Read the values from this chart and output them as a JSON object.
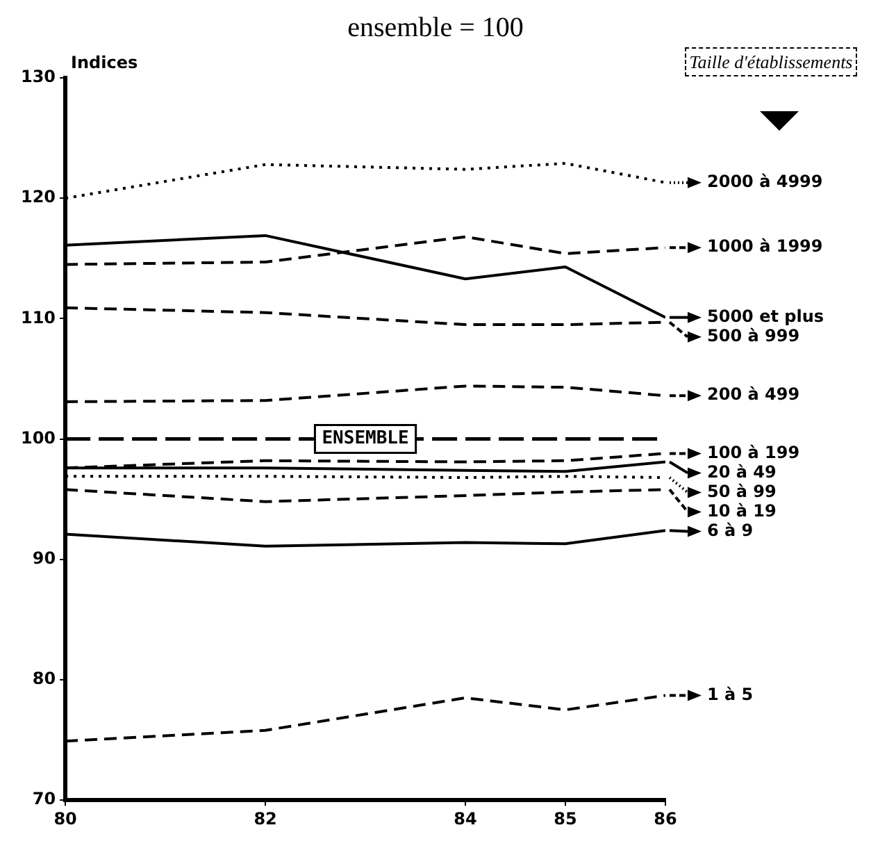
{
  "chart_data": {
    "type": "line",
    "title": "ensemble = 100",
    "ylabel": "Indices",
    "legend_title": "Taille d'établissements",
    "x": [
      80,
      82,
      84,
      85,
      86
    ],
    "xlim": [
      80,
      86
    ],
    "xticks": [
      80,
      82,
      84,
      85,
      86
    ],
    "ylim": [
      70,
      130
    ],
    "yticks": [
      70,
      80,
      90,
      100,
      110,
      120,
      130
    ],
    "grid": false,
    "marker": "none",
    "legend": "right",
    "series": [
      {
        "name": "2000 à 4999",
        "color": "#000000",
        "line_style": "dotted",
        "values": [
          120,
          122.8,
          122.4,
          122.9,
          121.3
        ]
      },
      {
        "name": "1000 à 1999",
        "color": "#000000",
        "line_style": "dashed",
        "values": [
          114.5,
          114.7,
          116.8,
          115.4,
          115.9
        ]
      },
      {
        "name": "5000 et plus",
        "color": "#000000",
        "line_style": "solid",
        "values": [
          116.1,
          116.9,
          113.3,
          114.3,
          110.1
        ]
      },
      {
        "name": "500 à 999",
        "color": "#000000",
        "line_style": "dashed",
        "values": [
          110.9,
          110.5,
          109.5,
          109.5,
          109.7
        ]
      },
      {
        "name": "200 à 499",
        "color": "#000000",
        "line_style": "dashed",
        "values": [
          103.1,
          103.2,
          104.4,
          104.3,
          103.6
        ]
      },
      {
        "name": "100 à 199",
        "color": "#000000",
        "line_style": "dashed",
        "values": [
          97.6,
          98.2,
          98.1,
          98.2,
          98.8
        ]
      },
      {
        "name": "20 à 49",
        "color": "#000000",
        "line_style": "solid",
        "values": [
          97.6,
          97.6,
          97.4,
          97.3,
          98.1
        ]
      },
      {
        "name": "50 à 99",
        "color": "#000000",
        "line_style": "dotted",
        "values": [
          96.9,
          96.9,
          96.8,
          96.9,
          96.8
        ]
      },
      {
        "name": "10 à 19",
        "color": "#000000",
        "line_style": "dashed",
        "values": [
          95.8,
          94.8,
          95.3,
          95.6,
          95.8
        ]
      },
      {
        "name": "6 à 9",
        "color": "#000000",
        "line_style": "solid",
        "values": [
          92.1,
          91.1,
          91.4,
          91.3,
          92.4
        ]
      },
      {
        "name": "1 à 5",
        "color": "#000000",
        "line_style": "dashed",
        "values": [
          74.9,
          75.8,
          78.5,
          77.5,
          78.7
        ]
      }
    ],
    "ref_lines": [
      {
        "axis": "y",
        "value": 100,
        "label": "ENSEMBLE",
        "line_style": "dashed",
        "color": "#000000"
      }
    ]
  }
}
